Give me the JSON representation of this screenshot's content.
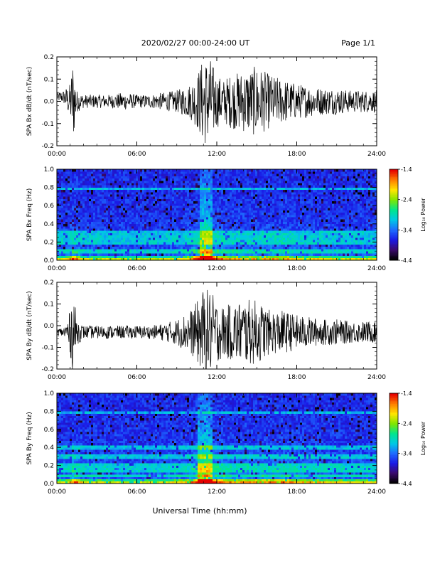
{
  "header": {
    "title": "2020/02/27  00:00-24:00 UT",
    "page": "Page 1/1"
  },
  "footer": {
    "xlabel": "Universal Time (hh:mm)"
  },
  "colorbar": {
    "label": "Log₁₀ Power",
    "ticks": [
      "-1.4",
      "-2.4",
      "-3.4",
      "-4.4"
    ],
    "tick_values": [
      -1.4,
      -2.4,
      -3.4,
      -4.4
    ],
    "range": [
      -4.4,
      -1.4
    ],
    "colormap": [
      "#000000",
      "#3b0a6e",
      "#1a1ae6",
      "#1e6cff",
      "#00c8e6",
      "#00e68c",
      "#7fe600",
      "#ffe600",
      "#ff7f00",
      "#e60000"
    ]
  },
  "chart_data": [
    {
      "type": "line",
      "name": "bx-waveform",
      "ylabel": "SPA Bx dB/dt (nT/sec)",
      "xticks": [
        "00:00",
        "06:00",
        "12:00",
        "18:00",
        "24:00"
      ],
      "xlim": [
        0,
        24
      ],
      "ylim": [
        -0.2,
        0.2
      ],
      "yticks": [
        "0.2",
        "0.1",
        "0.0",
        "-0.1",
        "-0.2"
      ],
      "ytick_values": [
        0.2,
        0.1,
        0.0,
        -0.1,
        -0.2
      ],
      "x": [
        0,
        0.5,
        1.0,
        1.2,
        1.5,
        2,
        3,
        4,
        5,
        6,
        7,
        8,
        9,
        10,
        10.5,
        11,
        11.5,
        12,
        12.5,
        13,
        14,
        15,
        16,
        17,
        18,
        19,
        20,
        21,
        22,
        23,
        24
      ],
      "amplitude": [
        0.02,
        0.03,
        0.08,
        0.2,
        0.05,
        0.03,
        0.03,
        0.03,
        0.04,
        0.03,
        0.03,
        0.04,
        0.05,
        0.08,
        0.12,
        0.2,
        0.2,
        0.12,
        0.1,
        0.12,
        0.14,
        0.16,
        0.12,
        0.1,
        0.08,
        0.07,
        0.06,
        0.06,
        0.05,
        0.05,
        0.05
      ],
      "baseline": [
        0.02,
        0.02,
        0.0,
        0.0,
        0.0,
        0.0,
        0.0,
        0.0,
        0.0,
        0.0,
        0.0,
        0.0,
        0.0,
        0.0,
        0.0,
        0.0,
        0.0,
        0.0,
        0.0,
        0.0,
        0.0,
        0.0,
        0.0,
        0.0,
        0.0,
        0.0,
        0.0,
        0.0,
        0.0,
        0.0,
        0.0
      ]
    },
    {
      "type": "heatmap",
      "name": "bx-spectrogram",
      "ylabel": "SPA Bx Freq (Hz)",
      "xticks": [
        "00:00",
        "06:00",
        "12:00",
        "18:00",
        "24:00"
      ],
      "xlim": [
        0,
        24
      ],
      "ylim": [
        0.0,
        1.0
      ],
      "yticks": [
        "1.0",
        "0.8",
        "0.6",
        "0.4",
        "0.2",
        "0.0"
      ],
      "ytick_values": [
        1.0,
        0.8,
        0.6,
        0.4,
        0.2,
        0.0
      ],
      "activity_x": [
        0,
        1,
        1.2,
        2,
        4,
        6,
        8,
        10,
        10.8,
        11.3,
        12,
        13,
        15,
        17,
        18,
        20,
        22,
        24
      ],
      "activity_level": [
        0.2,
        0.3,
        0.6,
        0.25,
        0.2,
        0.2,
        0.2,
        0.35,
        0.8,
        1.0,
        0.55,
        0.4,
        0.4,
        0.45,
        0.35,
        0.3,
        0.25,
        0.25
      ],
      "band_freqs": [
        0.02,
        0.1,
        0.18,
        0.22,
        0.25,
        0.3,
        0.78
      ]
    },
    {
      "type": "line",
      "name": "by-waveform",
      "ylabel": "SPA By dB/dt (nT/sec)",
      "xticks": [
        "00:00",
        "06:00",
        "12:00",
        "18:00",
        "24:00"
      ],
      "xlim": [
        0,
        24
      ],
      "ylim": [
        -0.2,
        0.2
      ],
      "yticks": [
        "0.2",
        "0.1",
        "0.0",
        "-0.1",
        "-0.2"
      ],
      "ytick_values": [
        0.2,
        0.1,
        0.0,
        -0.1,
        -0.2
      ],
      "x": [
        0,
        0.5,
        1.0,
        1.2,
        1.5,
        2,
        3,
        4,
        5,
        6,
        7,
        8,
        9,
        10,
        10.5,
        11,
        11.5,
        12,
        12.5,
        13,
        14,
        15,
        16,
        17,
        18,
        19,
        20,
        21,
        22,
        23,
        24
      ],
      "amplitude": [
        0.02,
        0.02,
        0.1,
        0.2,
        0.06,
        0.03,
        0.03,
        0.03,
        0.03,
        0.03,
        0.03,
        0.04,
        0.06,
        0.1,
        0.14,
        0.2,
        0.2,
        0.14,
        0.12,
        0.13,
        0.15,
        0.15,
        0.1,
        0.1,
        0.08,
        0.07,
        0.06,
        0.06,
        0.05,
        0.05,
        0.05
      ],
      "baseline": [
        -0.03,
        -0.03,
        -0.03,
        -0.02,
        -0.03,
        -0.03,
        -0.03,
        -0.03,
        -0.03,
        -0.03,
        -0.03,
        -0.03,
        -0.03,
        -0.03,
        -0.03,
        -0.03,
        -0.03,
        -0.03,
        -0.03,
        -0.03,
        -0.03,
        -0.03,
        -0.03,
        -0.03,
        -0.03,
        -0.03,
        -0.03,
        -0.03,
        -0.03,
        -0.03,
        -0.03
      ]
    },
    {
      "type": "heatmap",
      "name": "by-spectrogram",
      "ylabel": "SPA By Freq (Hz)",
      "xticks": [
        "00:00",
        "06:00",
        "12:00",
        "18:00",
        "24:00"
      ],
      "xlim": [
        0,
        24
      ],
      "ylim": [
        0.0,
        1.0
      ],
      "yticks": [
        "1.0",
        "0.8",
        "0.6",
        "0.4",
        "0.2",
        "0.0"
      ],
      "ytick_values": [
        1.0,
        0.8,
        0.6,
        0.4,
        0.2,
        0.0
      ],
      "activity_x": [
        0,
        1,
        1.2,
        2,
        4,
        6,
        8,
        10,
        10.8,
        11.3,
        12,
        13,
        15,
        17,
        18,
        20,
        22,
        24
      ],
      "activity_level": [
        0.25,
        0.35,
        0.65,
        0.3,
        0.25,
        0.25,
        0.25,
        0.4,
        0.85,
        1.0,
        0.6,
        0.45,
        0.45,
        0.5,
        0.4,
        0.35,
        0.3,
        0.3
      ],
      "band_freqs": [
        0.02,
        0.08,
        0.15,
        0.2,
        0.3,
        0.4,
        0.78
      ]
    }
  ]
}
